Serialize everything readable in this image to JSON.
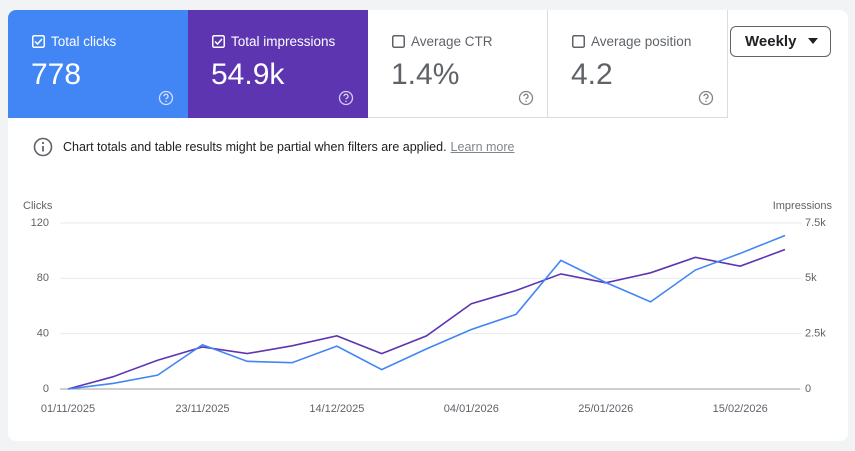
{
  "metrics": [
    {
      "label": "Total clicks",
      "value": "778",
      "checked": true,
      "color": "#4285f4"
    },
    {
      "label": "Total impressions",
      "value": "54.9k",
      "checked": true,
      "color": "#5e35b1"
    },
    {
      "label": "Average CTR",
      "value": "1.4%",
      "checked": false,
      "color": "#ffffff"
    },
    {
      "label": "Average position",
      "value": "4.2",
      "checked": false,
      "color": "#ffffff"
    }
  ],
  "filter_button": "Weekly",
  "notice": {
    "text": "Chart totals and table results might be partial when filters are applied.",
    "link": "Learn more"
  },
  "chart_data": {
    "type": "line",
    "y_label": "Clicks",
    "y2_label": "Impressions",
    "categories": [
      "01/11/2025",
      null,
      null,
      "23/11/2025",
      null,
      null,
      "14/12/2025",
      null,
      null,
      "04/01/2026",
      null,
      null,
      "25/01/2026",
      null,
      null,
      "15/02/2026",
      null
    ],
    "series": [
      {
        "color": "#5e35b1",
        "axis": "y2",
        "values": [
          0,
          550,
          1300,
          1900,
          1600,
          1950,
          2400,
          1600,
          2400,
          3850,
          4450,
          5200,
          4800,
          5250,
          5950,
          5550,
          6300
        ]
      },
      {
        "color": "#4285f4",
        "values": [
          0,
          4,
          10,
          32,
          20,
          19,
          31,
          14,
          29,
          43,
          54,
          93,
          77,
          63,
          86,
          98,
          111
        ]
      }
    ],
    "ylim": [
      0,
      120
    ],
    "yticks": [
      0,
      40,
      80,
      120
    ],
    "y2lim": [
      0,
      7500
    ],
    "y2ticks": [
      0,
      {
        "value": 2500,
        "label": "2.5k"
      },
      {
        "value": 5000,
        "label": "5k"
      },
      {
        "value": 7500,
        "label": "7.5k"
      }
    ],
    "grid": true
  }
}
